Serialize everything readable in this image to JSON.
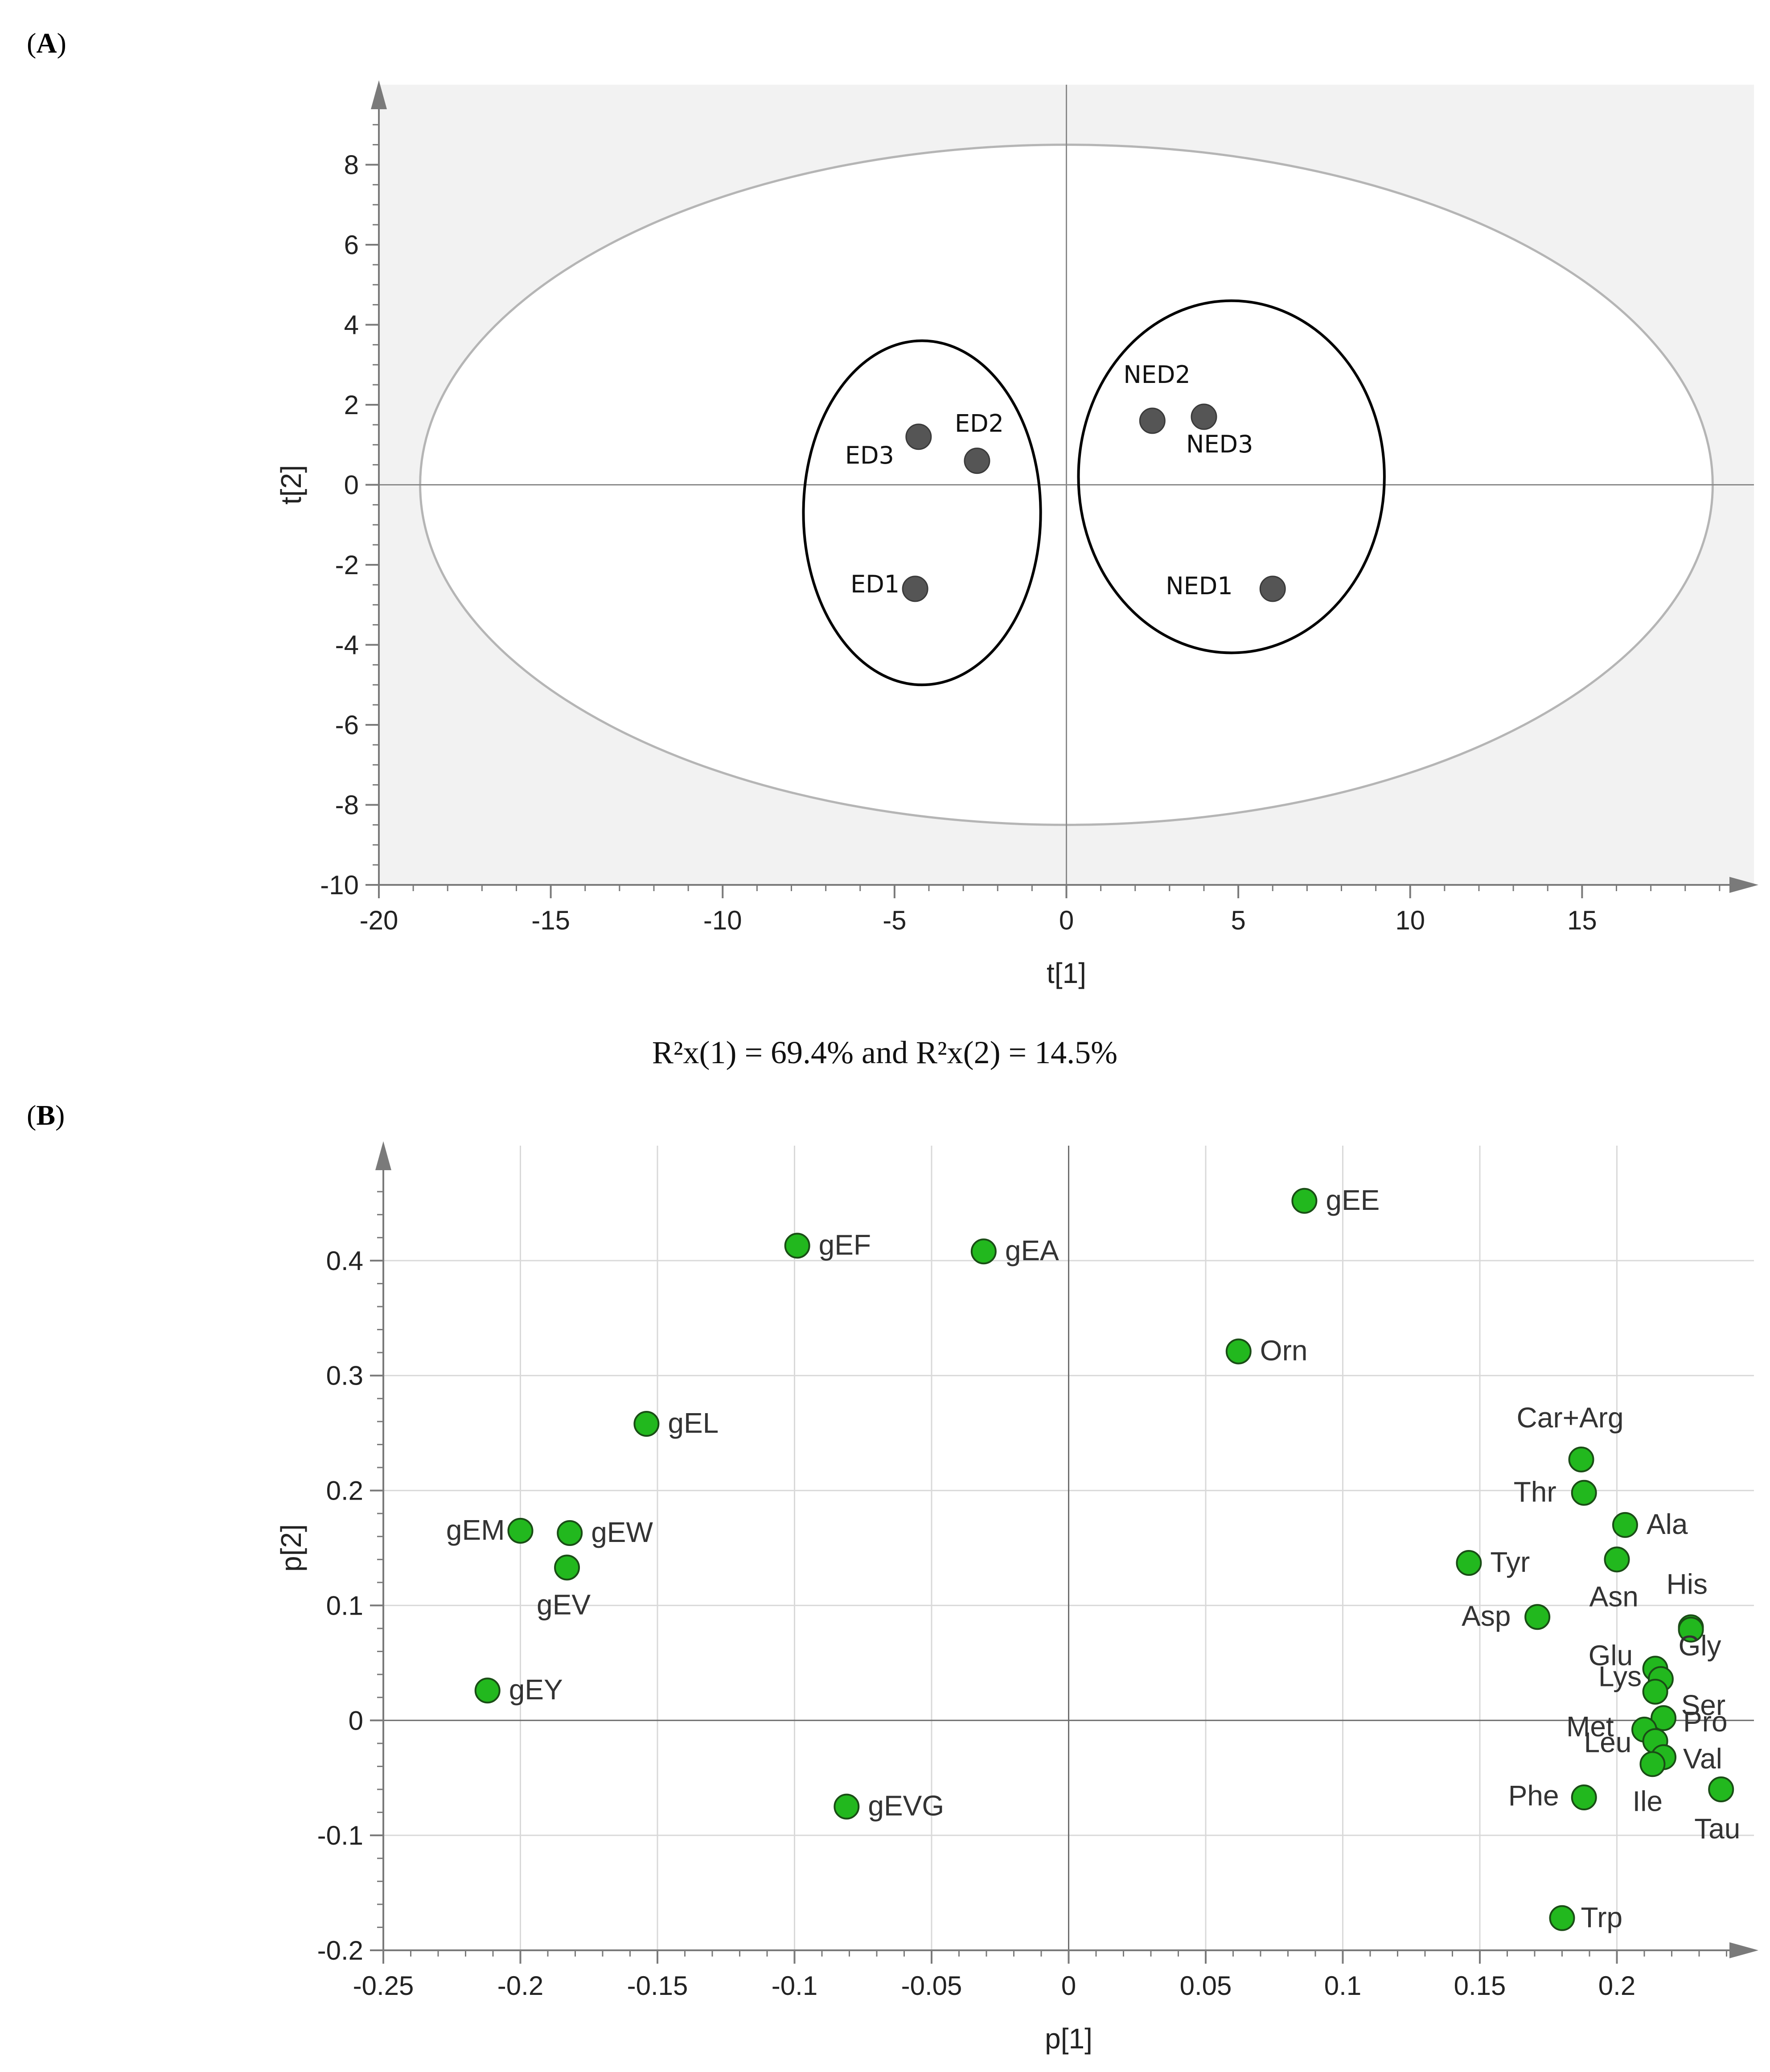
{
  "panel_a": {
    "label": "A"
  },
  "panel_b": {
    "label": "B"
  },
  "caption": "R²x(1) = 69.4% and R²x(2) = 14.5%",
  "colors": {
    "panel_a_background": "#f2f2f2",
    "panel_a_ellipse_fill": "#ffffff",
    "panel_a_point": "#555555",
    "panel_b_point": "#22b81e",
    "gridline": "#d9d9d9",
    "axis": "#7a7a7a"
  },
  "chart_data": [
    {
      "type": "scatter",
      "title": "",
      "xlabel": "t[1]",
      "ylabel": "t[2]",
      "xlim": [
        -20,
        20
      ],
      "ylim": [
        -10,
        10
      ],
      "xticks": [
        -20,
        -15,
        -10,
        -5,
        0,
        5,
        10,
        15
      ],
      "yticks": [
        -10,
        -8,
        -6,
        -4,
        -2,
        0,
        2,
        4,
        6,
        8
      ],
      "grid": false,
      "hotelling_ellipse": {
        "cx": 0,
        "cy": 0,
        "rx": 18.8,
        "ry": 8.5
      },
      "group_ellipses": [
        {
          "cx": -4.2,
          "cy": -0.7,
          "rx": 3.45,
          "ry": 4.3
        },
        {
          "cx": 4.8,
          "cy": 0.2,
          "rx": 4.45,
          "ry": 4.4
        }
      ],
      "points": [
        {
          "label": "ED1",
          "x": -4.4,
          "y": -2.6
        },
        {
          "label": "ED2",
          "x": -2.6,
          "y": 0.6
        },
        {
          "label": "ED3",
          "x": -4.3,
          "y": 1.2
        },
        {
          "label": "NED1",
          "x": 6.0,
          "y": -2.6
        },
        {
          "label": "NED2",
          "x": 2.5,
          "y": 1.6
        },
        {
          "label": "NED3",
          "x": 4.0,
          "y": 1.7
        }
      ]
    },
    {
      "type": "scatter",
      "title": "",
      "xlabel": "p[1]",
      "ylabel": "p[2]",
      "xlim": [
        -0.25,
        0.25
      ],
      "ylim": [
        -0.2,
        0.5
      ],
      "xticks": [
        "-0.25",
        "-0.2",
        "-0.15",
        "-0.1",
        "-0.05",
        "0",
        "0.05",
        "0.1",
        "0.15",
        "0.2"
      ],
      "yticks": [
        "-0.2",
        "-0.1",
        "0",
        "0.1",
        "0.2",
        "0.3",
        "0.4"
      ],
      "grid": true,
      "points": [
        {
          "label": "gEE",
          "x": 0.086,
          "y": 0.452
        },
        {
          "label": "gEF",
          "x": -0.099,
          "y": 0.413
        },
        {
          "label": "gEA",
          "x": -0.031,
          "y": 0.408
        },
        {
          "label": "Orn",
          "x": 0.062,
          "y": 0.321
        },
        {
          "label": "gEL",
          "x": -0.154,
          "y": 0.258
        },
        {
          "label": "gEM",
          "x": -0.2,
          "y": 0.165
        },
        {
          "label": "gEW",
          "x": -0.182,
          "y": 0.163
        },
        {
          "label": "gEV",
          "x": -0.183,
          "y": 0.133
        },
        {
          "label": "gEY",
          "x": -0.212,
          "y": 0.026
        },
        {
          "label": "gEVG",
          "x": -0.081,
          "y": -0.075
        },
        {
          "label": "Car+Arg",
          "x": 0.187,
          "y": 0.227
        },
        {
          "label": "Thr",
          "x": 0.188,
          "y": 0.198
        },
        {
          "label": "Ala",
          "x": 0.203,
          "y": 0.17
        },
        {
          "label": "Asn",
          "x": 0.2,
          "y": 0.14
        },
        {
          "label": "Tyr",
          "x": 0.146,
          "y": 0.137
        },
        {
          "label": "Asp",
          "x": 0.171,
          "y": 0.09
        },
        {
          "label": "His",
          "x": 0.227,
          "y": 0.081
        },
        {
          "label": "Gly",
          "x": 0.227,
          "y": 0.079
        },
        {
          "label": "Glu",
          "x": 0.214,
          "y": 0.045
        },
        {
          "label": "Lys",
          "x": 0.216,
          "y": 0.036
        },
        {
          "label": "Ser",
          "x": 0.214,
          "y": 0.025
        },
        {
          "label": "Pro",
          "x": 0.217,
          "y": 0.002
        },
        {
          "label": "Met",
          "x": 0.21,
          "y": -0.008
        },
        {
          "label": "Leu",
          "x": 0.214,
          "y": -0.018
        },
        {
          "label": "Val",
          "x": 0.217,
          "y": -0.032
        },
        {
          "label": "Ile",
          "x": 0.213,
          "y": -0.038
        },
        {
          "label": "Phe",
          "x": 0.188,
          "y": -0.067
        },
        {
          "label": "Tau",
          "x": 0.238,
          "y": -0.06
        },
        {
          "label": "Trp",
          "x": 0.18,
          "y": -0.172
        }
      ]
    }
  ]
}
